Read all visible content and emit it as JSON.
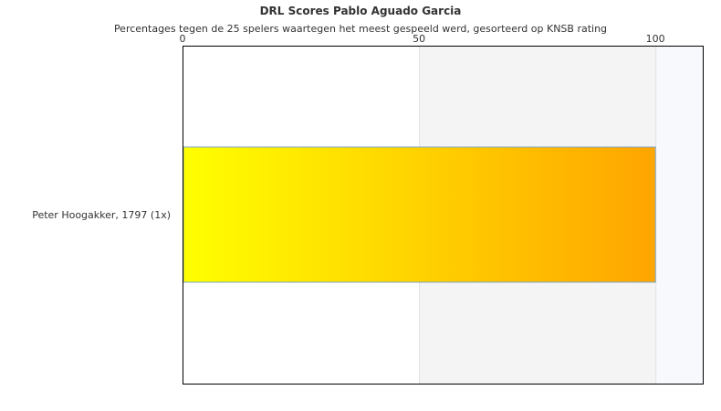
{
  "chart_data": {
    "type": "bar",
    "orientation": "horizontal",
    "title": "DRL Scores Pablo Aguado Garcia",
    "subtitle": "Percentages tegen de 25 spelers waartegen het meest gespeeld werd, gesorteerd op KNSB rating",
    "categories": [
      "Peter Hoogakker, 1797 (1x)"
    ],
    "values": [
      100
    ],
    "xlim": [
      0,
      110
    ],
    "xticks": [
      "0",
      "50",
      "100"
    ],
    "xaxis_position": "top",
    "bar_gradient": [
      "#ffff00",
      "#ffa500"
    ],
    "bands": [
      {
        "from": 0,
        "to": 50,
        "color": "#ffffff"
      },
      {
        "from": 50,
        "to": 100,
        "color": "#f4f4f4"
      },
      {
        "from": 100,
        "to": 110,
        "color": "#f7f9fc"
      }
    ]
  }
}
